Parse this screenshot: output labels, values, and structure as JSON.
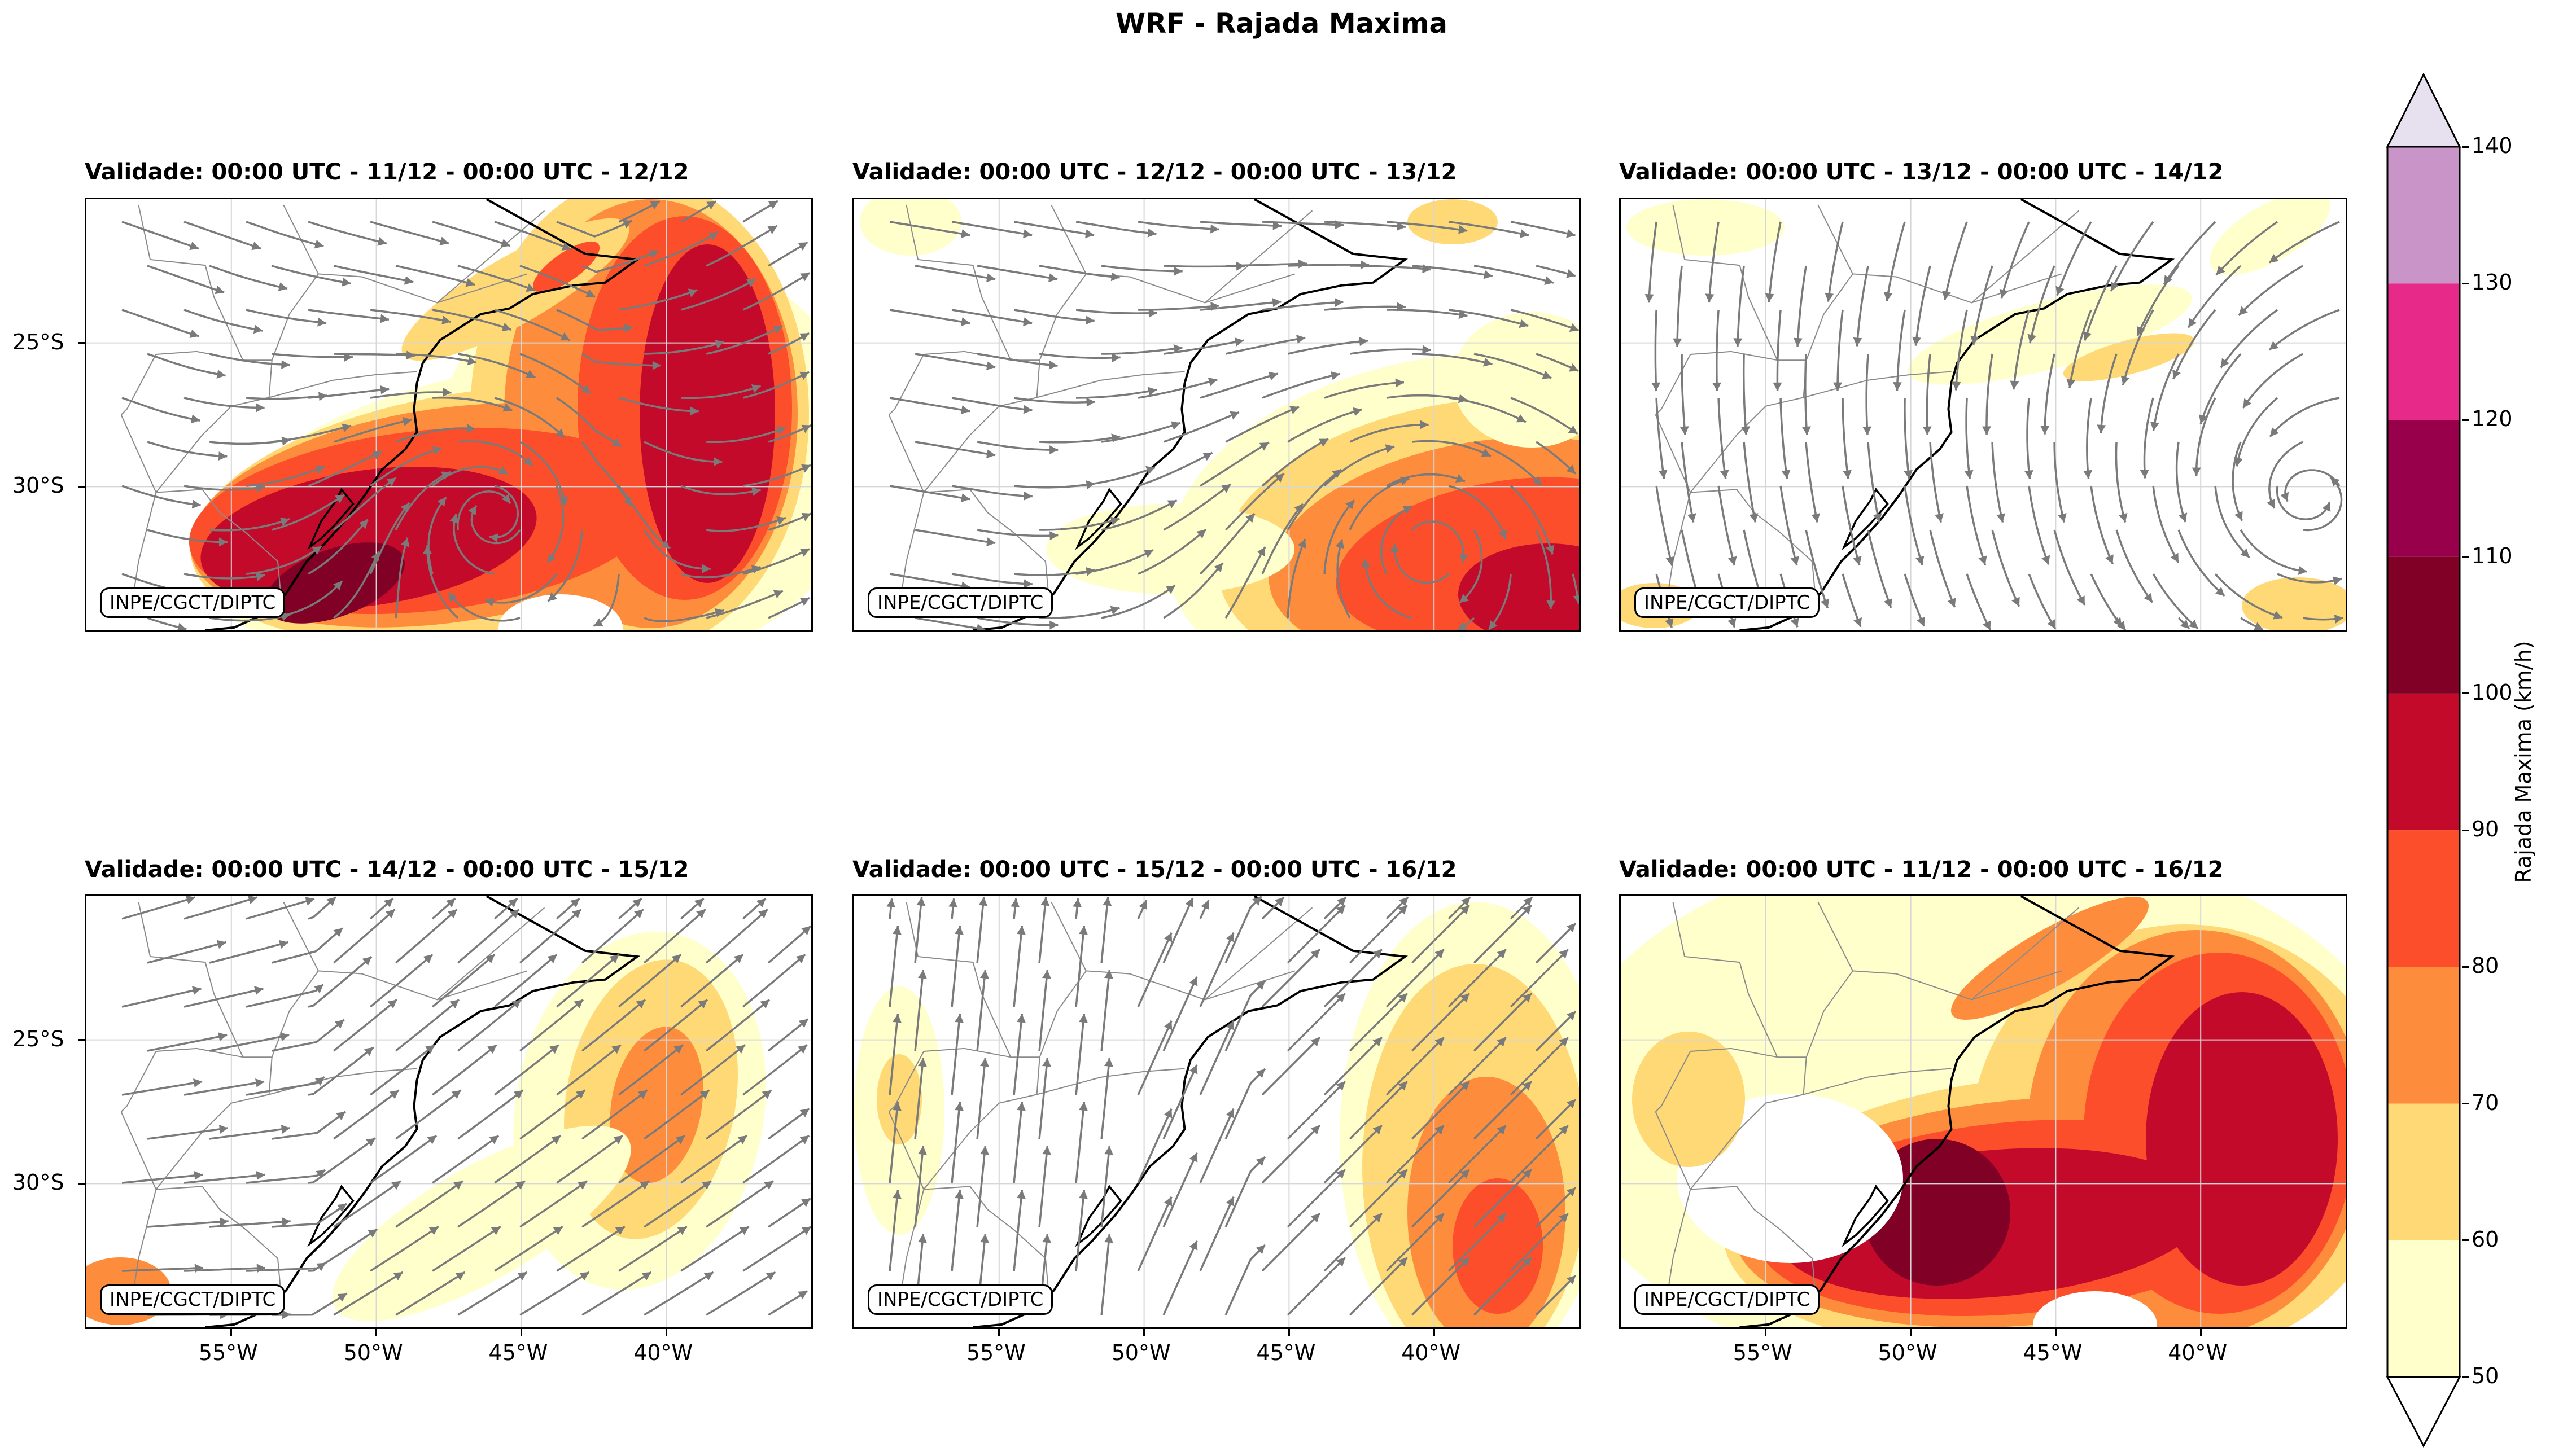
{
  "figure": {
    "title": "WRF - Rajada Maxima",
    "credit": "INPE/CGCT/DIPTC"
  },
  "colors": {
    "streamline": "#7a7a7a",
    "coast": "#000000",
    "border": "#8a8a8a",
    "grid": "#d6d6d6"
  },
  "colorbar": {
    "label": "Rajada Maxima (km/h)",
    "levels": [
      50,
      60,
      70,
      80,
      90,
      100,
      110,
      120,
      130,
      140
    ],
    "colors": [
      "#ffffcc",
      "#fed976",
      "#fd8d3c",
      "#fc4e2a",
      "#c40a2a",
      "#800026",
      "#99004c",
      "#e7298a",
      "#c994c7"
    ],
    "under_color": "#ffffff",
    "over_color": "#e7e1ef",
    "extend": "both"
  },
  "map": {
    "lon_ticks": [
      -55,
      -50,
      -45,
      -40
    ],
    "lon_labels": [
      "55°W",
      "50°W",
      "45°W",
      "40°W"
    ],
    "lat_ticks": [
      -25,
      -30
    ],
    "lat_labels": [
      "25°S",
      "30°S"
    ],
    "lon_range": [
      -60,
      -35
    ],
    "lat_range": [
      -35,
      -20
    ]
  },
  "panels": [
    {
      "title": "Validade: 00:00 UTC - 11/12 - 00:00 UTC - 12/12",
      "flow": "cyclone-south",
      "intensity": "strong-southeast"
    },
    {
      "title": "Validade: 00:00 UTC - 12/12 - 00:00 UTC - 13/12",
      "flow": "cyclone-southeast",
      "intensity": "moderate-southeast"
    },
    {
      "title": "Validade: 00:00 UTC - 13/12 - 00:00 UTC - 14/12",
      "flow": "anticyclone",
      "intensity": "weak"
    },
    {
      "title": "Validade: 00:00 UTC - 14/12 - 00:00 UTC - 15/12",
      "flow": "southwesterly",
      "intensity": "weak-offshore"
    },
    {
      "title": "Validade: 00:00 UTC - 15/12 - 00:00 UTC - 16/12",
      "flow": "southerly",
      "intensity": "moderate-offshore"
    },
    {
      "title": "Validade: 00:00 UTC - 11/12 - 00:00 UTC - 16/12",
      "flow": "none",
      "intensity": "accumulated-max"
    }
  ]
}
